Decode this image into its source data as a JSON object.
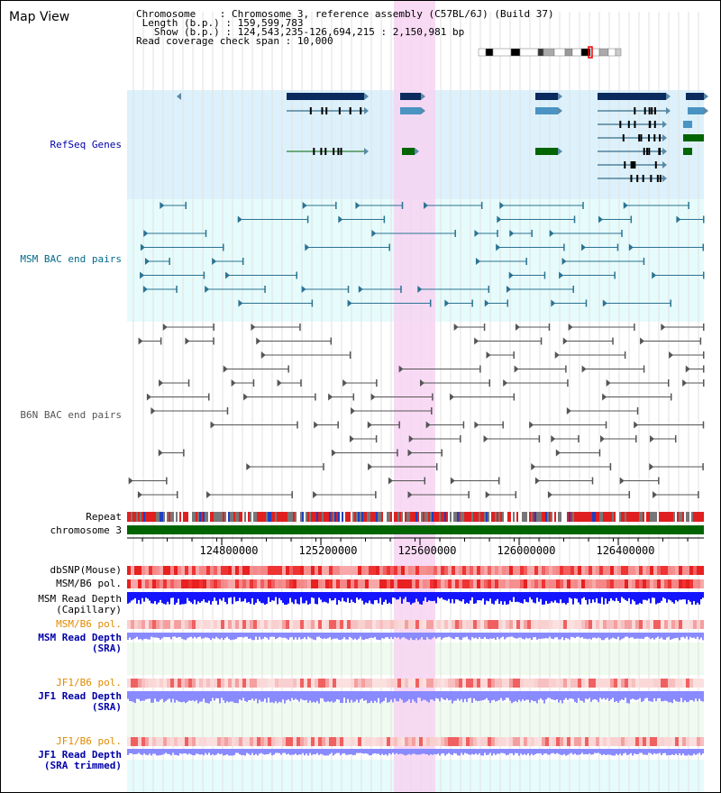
{
  "header": {
    "title": "Map View",
    "chromosome_label": "Chromosome",
    "chromosome_value": "Chromosome 3, reference assembly (C57BL/6J) (Build 37)",
    "length_label": "Length (b.p.)",
    "length_value": "159,599,783",
    "show_label": "Show (b.p.)",
    "show_value": "124,543,235-126,694,215 : 2,150,981 bp",
    "coverage_label": "Read coverage check span",
    "coverage_value": "10,000"
  },
  "tracks": {
    "refseq": "RefSeq Genes",
    "msm_bac": "MSM BAC end pairs",
    "b6n_bac": "B6N BAC end pairs",
    "repeat": "Repeat",
    "chromosome": "chromosome 3",
    "dbsnp": "dbSNP(Mouse)",
    "msm_b6_pol_1": "MSM/B6 pol.",
    "msm_read_depth_cap": "MSM Read Depth\n(Capillary)",
    "msm_b6_pol_2": "MSM/B6 pol.",
    "msm_read_depth_sra": "MSM Read Depth\n(SRA)",
    "jf1_b6_pol_1": "JF1/B6 pol.",
    "jf1_read_depth_sra": "JF1 Read Depth\n(SRA)",
    "jf1_b6_pol_2": "JF1/B6 pol.",
    "jf1_read_depth_trim": "JF1 Read Depth\n(SRA trimmed)"
  },
  "axis": {
    "ticks": [
      "124800000",
      "125200000",
      "125600000",
      "126000000",
      "126400000"
    ]
  },
  "colors": {
    "highlight": "#f7d4f2",
    "refseq_bg": "#dcf1fb",
    "msm_bg": "#e6fbfb",
    "gene_dark": "#0b2b5e",
    "gene_light": "#4a93c2",
    "gene_green": "#006400",
    "bac_teal": "#2a7393",
    "bac_gray": "#555555",
    "chrom_green": "#006400",
    "depth_blue": "#1414ff",
    "depth_light": "#8a8aff",
    "pol_red": "#ee3333"
  }
}
